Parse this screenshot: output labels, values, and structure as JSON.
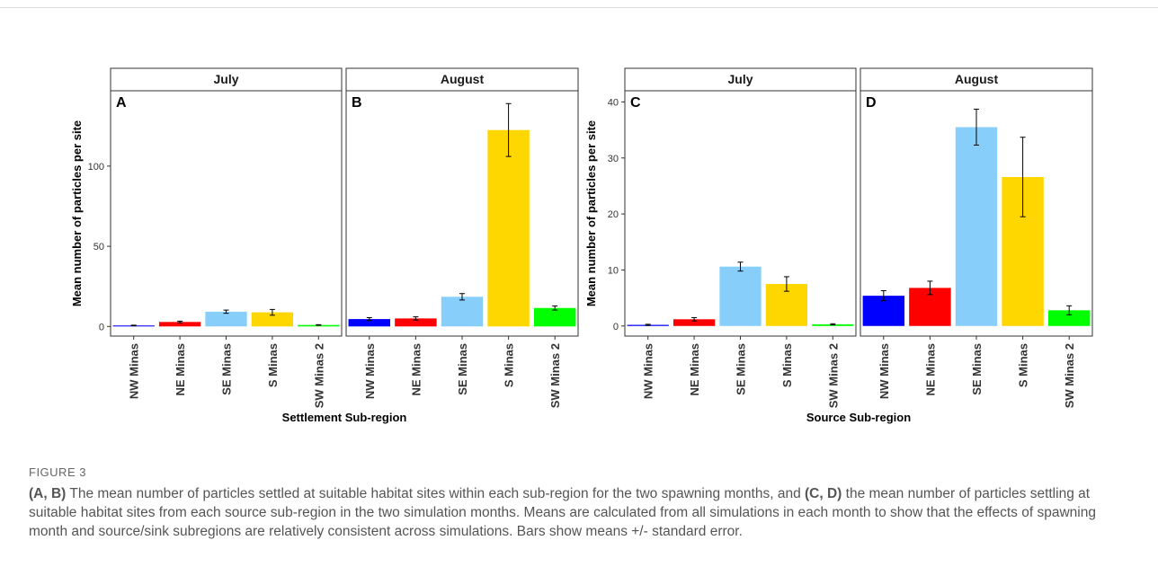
{
  "colors": {
    "NW Minas": "#0000ff",
    "NE Minas": "#ff0000",
    "SE Minas": "#87cefa",
    "S Minas": "#ffd700",
    "SW Minas 2": "#00ff00"
  },
  "chart_data": [
    {
      "type": "bar",
      "panel": "A",
      "strip": "July",
      "categories": [
        "NW Minas",
        "NE Minas",
        "SE Minas",
        "S Minas",
        "SW Minas 2"
      ],
      "values": [
        0.6,
        2.8,
        9.2,
        8.8,
        0.9
      ],
      "se": [
        0.2,
        0.5,
        1.0,
        1.8,
        0.2
      ],
      "ylabel": "Mean number of particles per site",
      "xlabel": "Settlement Sub-region",
      "yticks": [
        0,
        50,
        100
      ],
      "ylim": [
        -6,
        147
      ]
    },
    {
      "type": "bar",
      "panel": "B",
      "strip": "August",
      "categories": [
        "NW Minas",
        "NE Minas",
        "SE Minas",
        "S Minas",
        "SW Minas 2"
      ],
      "values": [
        4.6,
        5.0,
        18.5,
        122.5,
        11.5
      ],
      "se": [
        0.9,
        1.0,
        2.0,
        16.5,
        1.3
      ],
      "ylim": [
        -6,
        147
      ]
    },
    {
      "type": "bar",
      "panel": "C",
      "strip": "July",
      "categories": [
        "NW Minas",
        "NE Minas",
        "SE Minas",
        "S Minas",
        "SW Minas 2"
      ],
      "values": [
        0.2,
        1.2,
        10.6,
        7.5,
        0.3
      ],
      "se": [
        0.1,
        0.3,
        0.8,
        1.3,
        0.1
      ],
      "ylabel": "Mean number of particles per site",
      "xlabel": "Source Sub-region",
      "yticks": [
        0,
        10,
        20,
        30,
        40
      ],
      "ylim": [
        -1.8,
        42
      ]
    },
    {
      "type": "bar",
      "panel": "D",
      "strip": "August",
      "categories": [
        "NW Minas",
        "NE Minas",
        "SE Minas",
        "S Minas",
        "SW Minas 2"
      ],
      "values": [
        5.4,
        6.8,
        35.5,
        26.6,
        2.8
      ],
      "se": [
        0.9,
        1.2,
        3.2,
        7.1,
        0.8
      ],
      "ylim": [
        -1.8,
        42
      ]
    }
  ],
  "caption": {
    "figure_label": "FIGURE 3",
    "refs": [
      "(A, B)",
      "(C, D)"
    ],
    "text_1": " The mean number of particles settled at suitable habitat sites within each sub-region for the two spawning months, and ",
    "text_2": " the mean number of particles settling at suitable habitat sites from each source sub-region in the two simulation months. Means are calculated from all simulations in each month to show that the effects of spawning month and source/sink subregions are relatively consistent across simulations. Bars show means +/- standard error."
  }
}
